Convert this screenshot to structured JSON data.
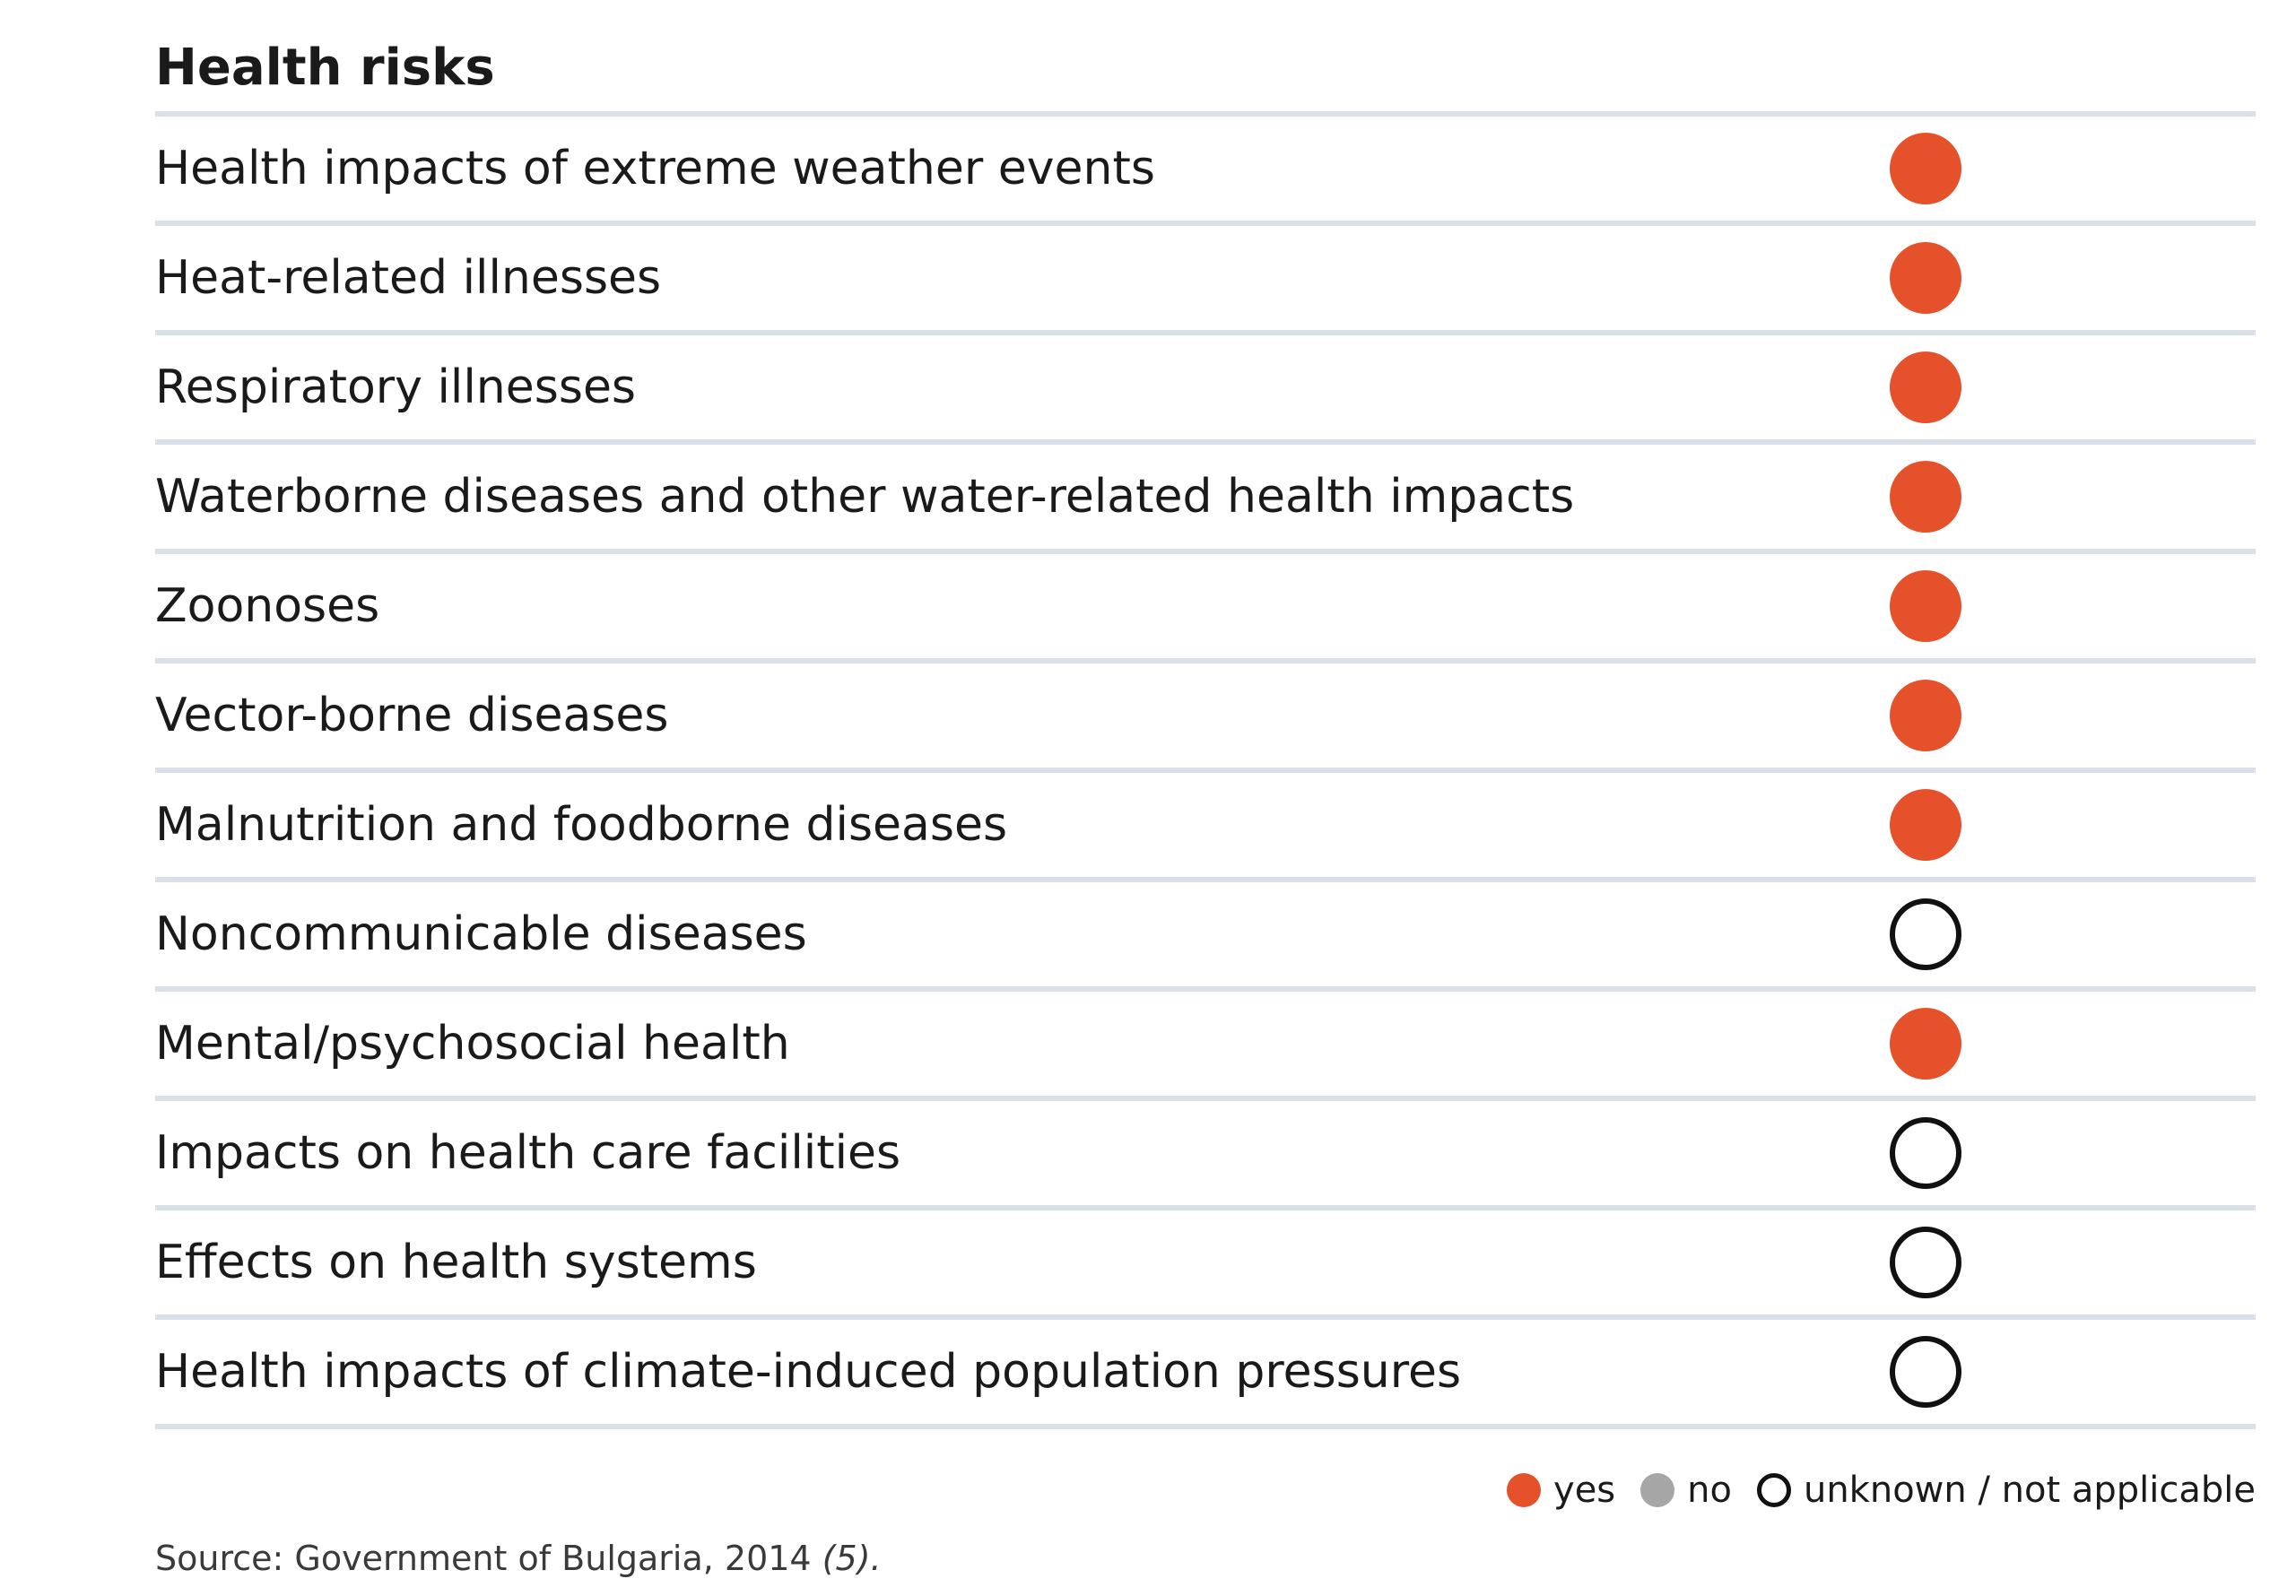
{
  "title": "Health risks",
  "colors": {
    "yes": "#e5512a",
    "no": "#a6a6a6",
    "unknown": "#ffffff"
  },
  "rows": [
    {
      "label": "Health impacts of extreme weather events",
      "status": "yes"
    },
    {
      "label": "Heat-related illnesses",
      "status": "yes"
    },
    {
      "label": "Respiratory illnesses",
      "status": "yes"
    },
    {
      "label": "Waterborne diseases and other water-related health impacts",
      "status": "yes"
    },
    {
      "label": "Zoonoses",
      "status": "yes"
    },
    {
      "label": "Vector-borne diseases",
      "status": "yes"
    },
    {
      "label": "Malnutrition and foodborne diseases",
      "status": "yes"
    },
    {
      "label": "Noncommunicable diseases",
      "status": "unknown"
    },
    {
      "label": "Mental/psychosocial health",
      "status": "yes"
    },
    {
      "label": "Impacts on health care facilities",
      "status": "unknown"
    },
    {
      "label": "Effects on health systems",
      "status": "unknown"
    },
    {
      "label": "Health impacts of climate-induced population pressures",
      "status": "unknown"
    }
  ],
  "legend": {
    "yes": "yes",
    "no": "no",
    "unknown": "unknown / not applicable"
  },
  "source": {
    "text": "Source: Government of Bulgaria, 2014",
    "ref": "(5)."
  }
}
